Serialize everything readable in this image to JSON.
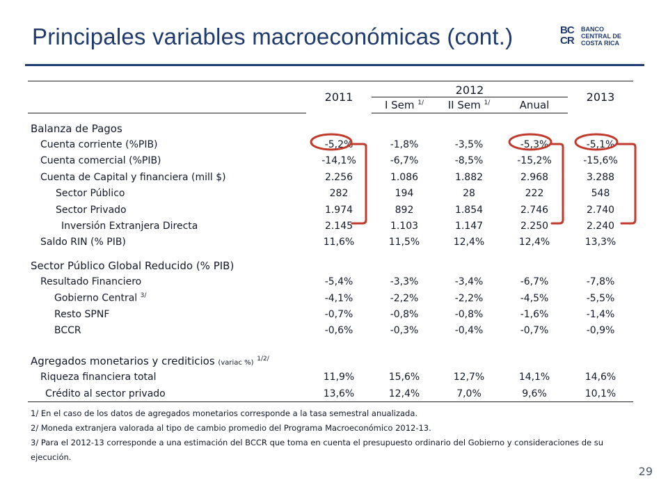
{
  "title": "Principales variables macroeconómicas (cont.)",
  "logo": {
    "mark_top": "BC",
    "mark_bottom": "CR",
    "line1": "BANCO",
    "line2": "CENTRAL DE",
    "line3": "COSTA RICA"
  },
  "table": {
    "head": {
      "y2011": "2011",
      "y2012": "2012",
      "y2013": "2013",
      "isem": "I Sem",
      "isem_note": "1/",
      "iisem": "II Sem",
      "iisem_note": "1/",
      "anual": "Anual"
    },
    "balanza": {
      "title": "Balanza de Pagos",
      "rows": [
        {
          "label": "Cuenta corriente (%PIB)",
          "v": [
            "-5,2%",
            "-1,8%",
            "-3,5%",
            "-5,3%",
            "-5,1%"
          ]
        },
        {
          "label": "Cuenta comercial (%PIB)",
          "v": [
            "-14,1%",
            "-6,7%",
            "-8,5%",
            "-15,2%",
            "-15,6%"
          ]
        },
        {
          "label": "Cuenta de Capital y financiera (mill $)",
          "v": [
            "2.256",
            "1.086",
            "1.882",
            "2.968",
            "3.288"
          ]
        },
        {
          "label": "Sector Público",
          "v": [
            "282",
            "194",
            "28",
            "222",
            "548"
          ]
        },
        {
          "label": "Sector Privado",
          "v": [
            "1.974",
            "892",
            "1.854",
            "2.746",
            "2.740"
          ]
        },
        {
          "label": "Inversión Extranjera Directa",
          "v": [
            "2.145",
            "1.103",
            "1.147",
            "2.250",
            "2.240"
          ]
        },
        {
          "label": "Saldo RIN (% PIB)",
          "v": [
            "11,6%",
            "11,5%",
            "12,4%",
            "12,4%",
            "13,3%"
          ]
        }
      ]
    },
    "sector": {
      "title": "Sector Público Global Reducido (% PIB)",
      "rows": [
        {
          "label": "Resultado Financiero",
          "v": [
            "-5,4%",
            "-3,3%",
            "-3,4%",
            "-6,7%",
            "-7,8%"
          ]
        },
        {
          "label": "Gobierno Central",
          "note": "3/",
          "v": [
            "-4,1%",
            "-2,2%",
            "-2,2%",
            "-4,5%",
            "-5,5%"
          ]
        },
        {
          "label": "Resto SPNF",
          "v": [
            "-0,7%",
            "-0,8%",
            "-0,8%",
            "-1,6%",
            "-1,4%"
          ]
        },
        {
          "label": "BCCR",
          "v": [
            "-0,6%",
            "-0,3%",
            "-0,4%",
            "-0,7%",
            "-0,9%"
          ]
        }
      ]
    },
    "agregados": {
      "title": "Agregados monetarios y crediticios",
      "title_small": "(variac %)",
      "title_note": "1/2/",
      "rows": [
        {
          "label": "Riqueza financiera total",
          "v": [
            "11,9%",
            "15,6%",
            "12,7%",
            "14,1%",
            "14,6%"
          ]
        },
        {
          "label": "Crédito  al sector privado",
          "v": [
            "13,6%",
            "12,4%",
            "7,0%",
            "9,6%",
            "10,1%"
          ]
        }
      ]
    }
  },
  "notes": [
    "1/ En el caso de los datos de agregados monetarios corresponde a la tasa semestral anualizada.",
    "2/ Moneda extranjera valorada al tipo de cambio promedio del Programa Macroeconómico 2012-13.",
    "3/ Para el 2012-13 corresponde a una estimación del BCCR que toma en cuenta el presupuesto ordinario del Gobierno y consideraciones de su",
    "ejecución."
  ],
  "page_number": "29",
  "colors": {
    "title": "#1e3a6e",
    "highlight": "#c0392b"
  }
}
